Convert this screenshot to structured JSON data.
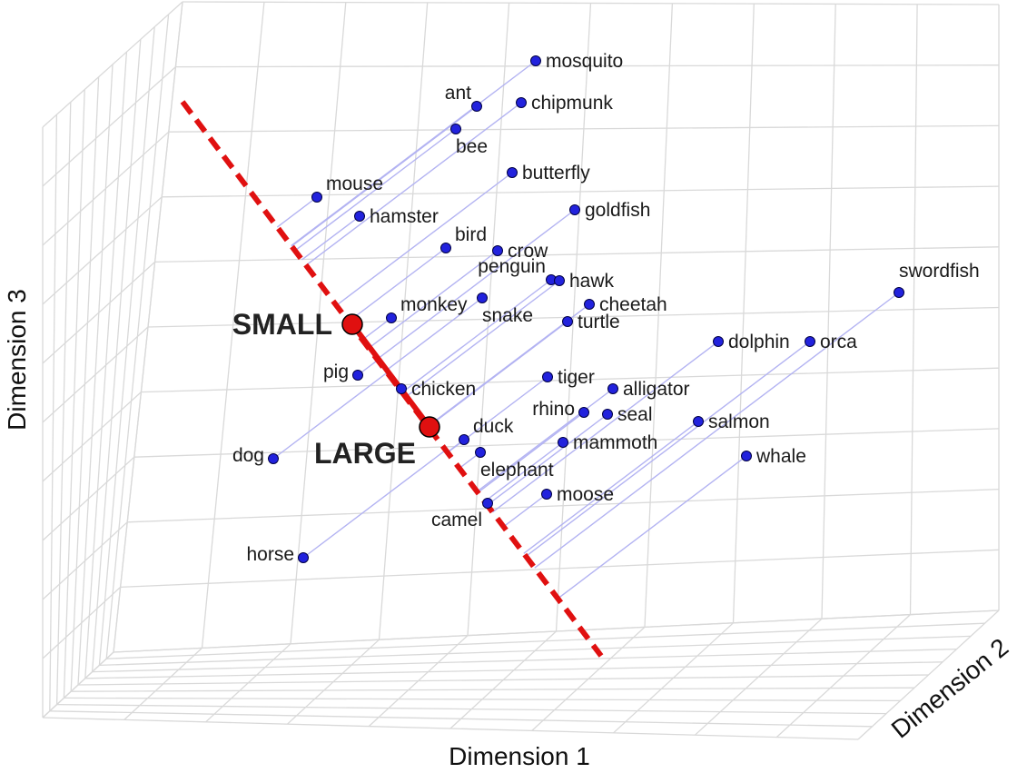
{
  "chart_data": {
    "type": "scatter",
    "dimensions": 3,
    "title": "",
    "xlabel": "Dimension 1",
    "ylabel": "Dimension 2",
    "zlabel": "Dimension 3",
    "grid": true,
    "point_color": "#2222dd",
    "projection_line_color": "#b3b3f2",
    "axis_line_color": "#e01010",
    "note": "",
    "semantic_axis": {
      "style": "dashed",
      "poles": [
        {
          "label": "SMALL"
        },
        {
          "label": "LARGE"
        }
      ]
    },
    "points": [
      {
        "label": "mosquito"
      },
      {
        "label": "ant"
      },
      {
        "label": "chipmunk"
      },
      {
        "label": "bee"
      },
      {
        "label": "butterfly"
      },
      {
        "label": "mouse"
      },
      {
        "label": "hamster"
      },
      {
        "label": "goldfish"
      },
      {
        "label": "bird"
      },
      {
        "label": "crow"
      },
      {
        "label": "penguin"
      },
      {
        "label": "hawk"
      },
      {
        "label": "snake"
      },
      {
        "label": "monkey"
      },
      {
        "label": "cheetah"
      },
      {
        "label": "turtle"
      },
      {
        "label": "swordfish"
      },
      {
        "label": "dolphin"
      },
      {
        "label": "orca"
      },
      {
        "label": "pig"
      },
      {
        "label": "chicken"
      },
      {
        "label": "tiger"
      },
      {
        "label": "alligator"
      },
      {
        "label": "rhino"
      },
      {
        "label": "seal"
      },
      {
        "label": "salmon"
      },
      {
        "label": "duck"
      },
      {
        "label": "mammoth"
      },
      {
        "label": "dog"
      },
      {
        "label": "elephant"
      },
      {
        "label": "whale"
      },
      {
        "label": "moose"
      },
      {
        "label": "camel"
      },
      {
        "label": "horse"
      }
    ]
  }
}
